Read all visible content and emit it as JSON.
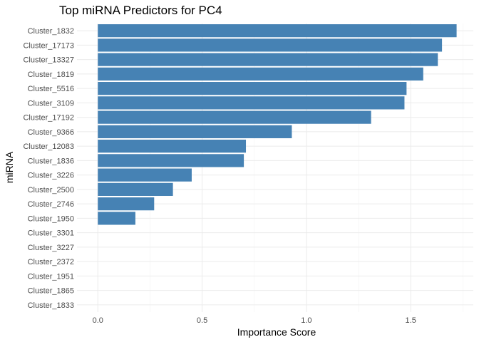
{
  "chart_data": {
    "type": "bar",
    "orientation": "horizontal",
    "title": "Top miRNA Predictors for PC4",
    "xlabel": "Importance Score",
    "ylabel": "miRNA",
    "xlim": [
      -0.1,
      1.8
    ],
    "xticks": [
      0.0,
      0.5,
      1.0,
      1.5
    ],
    "xtick_labels": [
      "0.0",
      "0.5",
      "1.0",
      "1.5"
    ],
    "grid": true,
    "legend": "none",
    "bar_color": "#4682B4",
    "categories": [
      "Cluster_1832",
      "Cluster_17173",
      "Cluster_13327",
      "Cluster_1819",
      "Cluster_5516",
      "Cluster_3109",
      "Cluster_17192",
      "Cluster_9366",
      "Cluster_12083",
      "Cluster_1836",
      "Cluster_3226",
      "Cluster_2500",
      "Cluster_2746",
      "Cluster_1950",
      "Cluster_3301",
      "Cluster_3227",
      "Cluster_2372",
      "Cluster_1951",
      "Cluster_1865",
      "Cluster_1833"
    ],
    "values": [
      1.72,
      1.65,
      1.63,
      1.56,
      1.48,
      1.47,
      1.31,
      0.93,
      0.71,
      0.7,
      0.45,
      0.36,
      0.27,
      0.18,
      0.0,
      0.0,
      0.0,
      0.0,
      0.0,
      0.0
    ]
  }
}
